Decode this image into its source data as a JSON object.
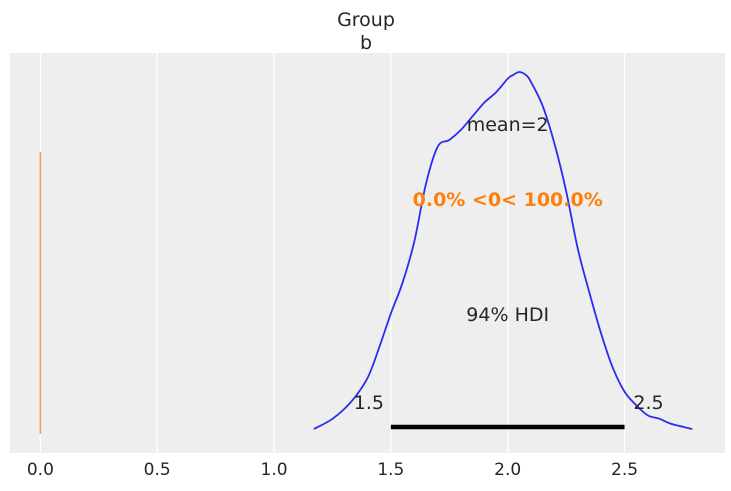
{
  "chart_data": {
    "type": "line",
    "title": "Group",
    "subtitle": "b",
    "xlabel": "",
    "ylabel": "",
    "xlim": [
      -0.13,
      2.93
    ],
    "xticks": [
      0.0,
      0.5,
      1.0,
      1.5,
      2.0,
      2.5
    ],
    "xtick_labels": [
      "0.0",
      "0.5",
      "1.0",
      "1.5",
      "2.0",
      "2.5"
    ],
    "grid": true,
    "background_color": "#eeeeee",
    "density_color": "#2a2eec",
    "hdi_color": "#000000",
    "reference_color": "#ff7f0e",
    "density": {
      "x": [
        1.17,
        1.25,
        1.33,
        1.4,
        1.45,
        1.5,
        1.55,
        1.6,
        1.65,
        1.7,
        1.75,
        1.8,
        1.85,
        1.9,
        1.95,
        2.0,
        2.02,
        2.05,
        2.08,
        2.1,
        2.15,
        2.2,
        2.25,
        2.3,
        2.35,
        2.4,
        2.45,
        2.5,
        2.55,
        2.6,
        2.65,
        2.7,
        2.79
      ],
      "y": [
        0.0,
        0.03,
        0.08,
        0.15,
        0.24,
        0.34,
        0.43,
        0.55,
        0.72,
        0.83,
        0.85,
        0.88,
        0.92,
        0.96,
        0.99,
        1.03,
        1.04,
        1.05,
        1.04,
        1.02,
        0.95,
        0.84,
        0.7,
        0.53,
        0.4,
        0.28,
        0.18,
        0.11,
        0.07,
        0.04,
        0.03,
        0.015,
        0.0
      ]
    },
    "mean_label": "mean=2",
    "reference": {
      "value": 0,
      "label": "0.0% <0< 100.0%"
    },
    "hdi": {
      "label": "94% HDI",
      "low": 1.5,
      "high": 2.5,
      "low_label": "1.5",
      "high_label": "2.5"
    }
  }
}
